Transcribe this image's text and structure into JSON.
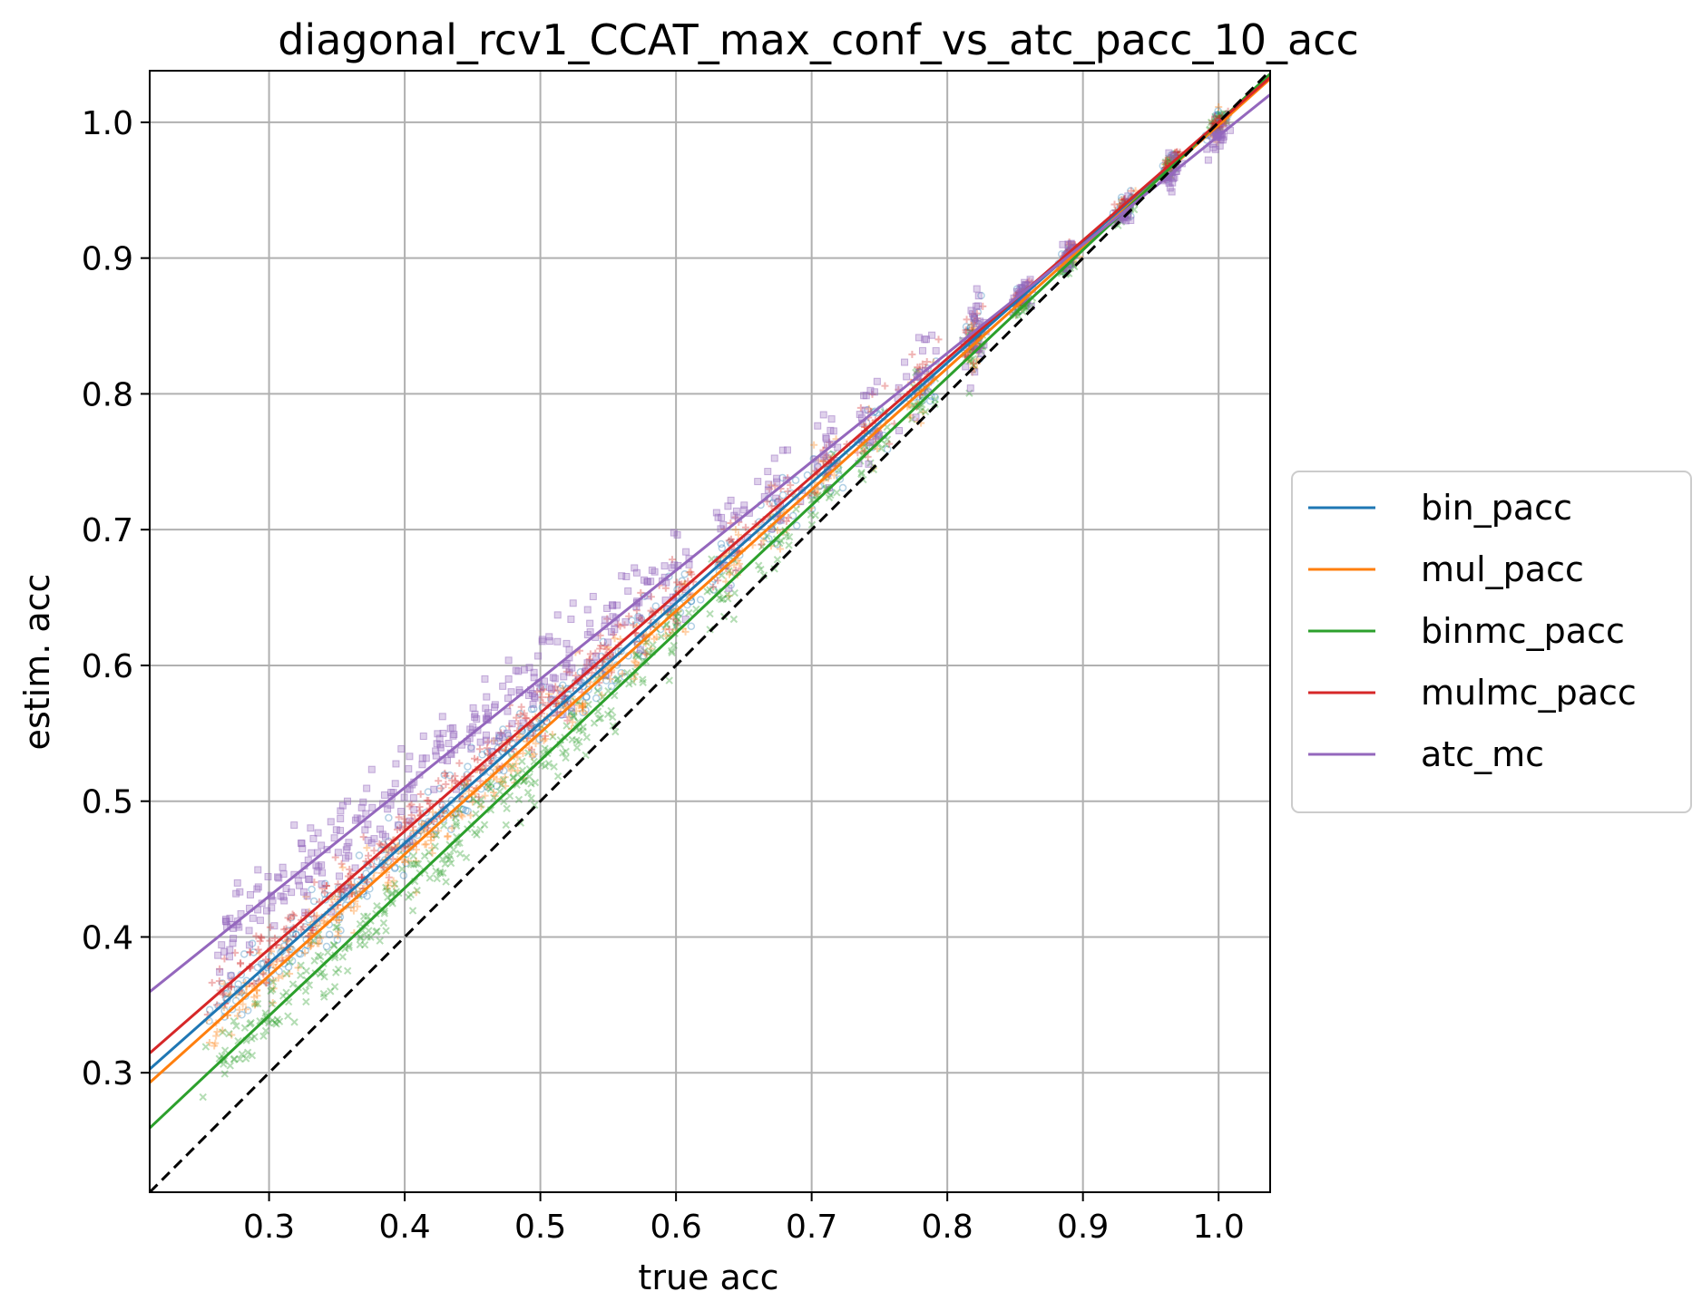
{
  "chart_data": {
    "type": "scatter",
    "title": "diagonal_rcv1_CCAT_max_conf_vs_atc_pacc_10_acc",
    "xlabel": "true acc",
    "ylabel": "estim. acc",
    "xlim": [
      0.212,
      1.038
    ],
    "ylim": [
      0.212,
      1.038
    ],
    "grid": true,
    "legend_position": "center-right-outside",
    "x_ticks": [
      "0.3",
      "0.4",
      "0.5",
      "0.6",
      "0.7",
      "0.8",
      "0.9",
      "1.0"
    ],
    "y_ticks": [
      "0.3",
      "0.4",
      "0.5",
      "0.6",
      "0.7",
      "0.8",
      "0.9",
      "1.0"
    ],
    "x_tick_values": [
      0.3,
      0.4,
      0.5,
      0.6,
      0.7,
      0.8,
      0.9,
      1.0
    ],
    "y_tick_values": [
      0.3,
      0.4,
      0.5,
      0.6,
      0.7,
      0.8,
      0.9,
      1.0
    ],
    "reference_line": {
      "name": "diagonal",
      "style": "dashed",
      "color": "#000000",
      "slope": 1.0,
      "intercept": 0.0
    },
    "series": [
      {
        "name": "bin_pacc",
        "color": "#1f77b4",
        "marker": "circle",
        "fit_slope": 0.885,
        "fit_intercept": 0.115,
        "noise": 0.018
      },
      {
        "name": "mul_pacc",
        "color": "#ff7f0e",
        "marker": "plus",
        "fit_slope": 0.895,
        "fit_intercept": 0.103,
        "noise": 0.02
      },
      {
        "name": "binmc_pacc",
        "color": "#2ca02c",
        "marker": "x",
        "fit_slope": 0.94,
        "fit_intercept": 0.06,
        "noise": 0.02
      },
      {
        "name": "mulmc_pacc",
        "color": "#d62728",
        "marker": "plus",
        "fit_slope": 0.87,
        "fit_intercept": 0.13,
        "noise": 0.018
      },
      {
        "name": "atc_mc",
        "color": "#9467bd",
        "marker": "square",
        "fit_slope": 0.8,
        "fit_intercept": 0.19,
        "noise": 0.03
      }
    ],
    "true_acc_clusters": [
      0.27,
      0.29,
      0.31,
      0.33,
      0.35,
      0.37,
      0.39,
      0.41,
      0.43,
      0.45,
      0.47,
      0.49,
      0.51,
      0.53,
      0.55,
      0.575,
      0.6,
      0.64,
      0.675,
      0.71,
      0.745,
      0.78,
      0.82,
      0.855,
      0.89,
      0.93,
      0.965,
      1.0
    ]
  }
}
